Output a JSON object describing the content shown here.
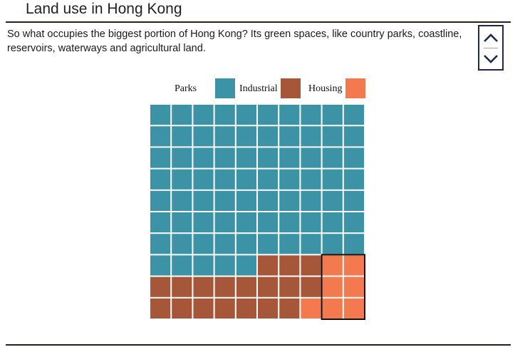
{
  "section": {
    "title": "Land use in Hong Kong",
    "description": "So what occupies the biggest portion of Hong Kong? Its green spaces, like country parks, coastline, reservoirs, waterways and agricultural land."
  },
  "nav": {
    "up_icon": "chevron-up-icon",
    "down_icon": "chevron-down-icon"
  },
  "chart_data": {
    "type": "waffle",
    "grid": {
      "rows": 10,
      "cols": 10
    },
    "categories": [
      "Parks",
      "Industrial",
      "Housing"
    ],
    "values": [
      75,
      18,
      7
    ],
    "colors": {
      "Parks": "#3d93a6",
      "Industrial": "#a65739",
      "Housing": "#f3794f"
    },
    "highlighted_category": "Housing"
  }
}
